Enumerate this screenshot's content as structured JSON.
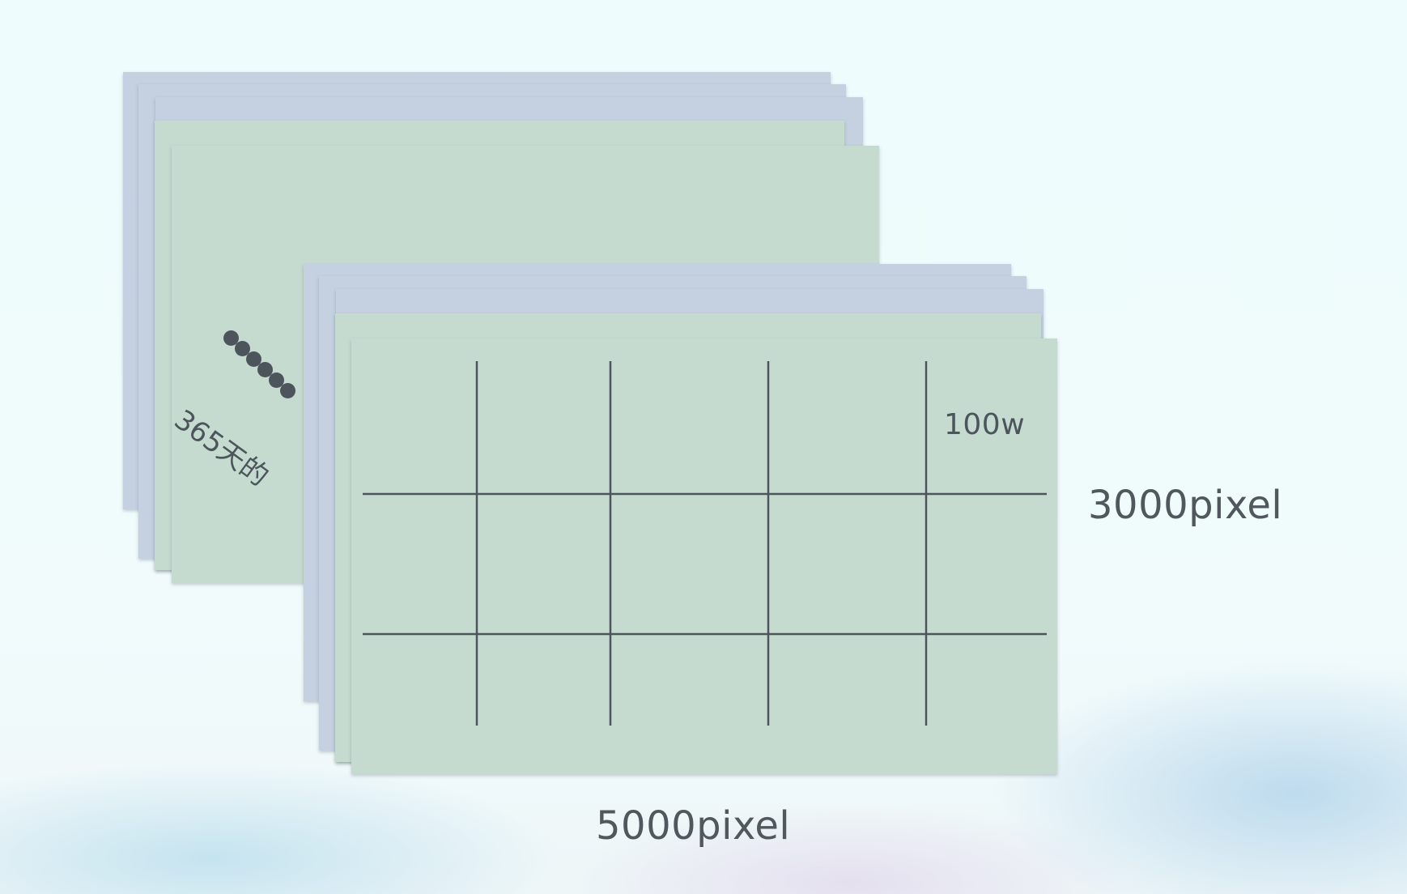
{
  "diagram": {
    "cell_label": "100w",
    "height_label": "3000pixel",
    "width_label": "5000pixel",
    "side_text": "365天的",
    "dot_count": 6,
    "grid": {
      "columns": 5,
      "rows": 3
    },
    "colors": {
      "sheet_blue": "#c5d1e1",
      "sheet_green": "#c6dbd0",
      "line": "#4c555c"
    }
  }
}
